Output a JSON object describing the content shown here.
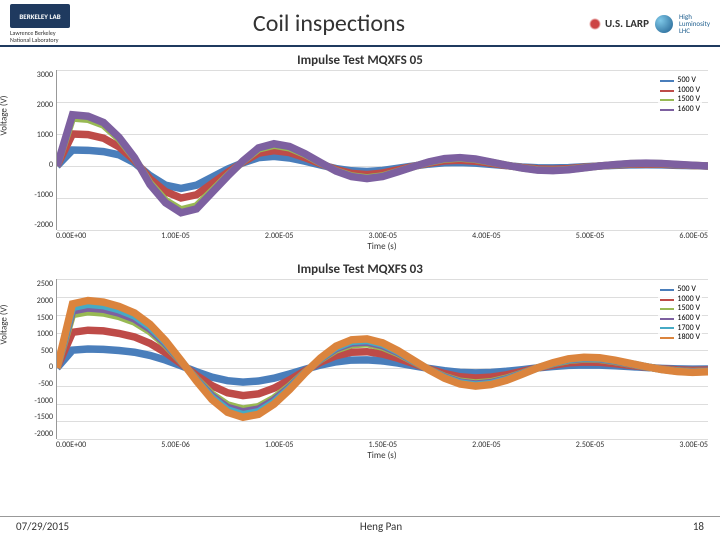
{
  "header": {
    "logo_badge": "BERKELEY LAB",
    "logo_sub1": "Lawrence Berkeley",
    "logo_sub2": "National Laboratory",
    "title": "Coil inspections",
    "larp_label": "U.S. LARP",
    "hilumi1": "High",
    "hilumi2": "Luminosity",
    "hilumi3": "LHC"
  },
  "chart1": {
    "title": "Impulse Test MQXFS 05",
    "type": "line",
    "ylabel": "Voltage (V)",
    "xlabel": "Time (s)",
    "ylim": [
      -2000,
      3000
    ],
    "yticks": [
      "3000",
      "2000",
      "1000",
      "0",
      "-1000",
      "-2000"
    ],
    "xticks": [
      "0.00E+00",
      "1.00E-05",
      "2.00E-05",
      "3.00E-05",
      "4.00E-05",
      "5.00E-05",
      "6.00E-05"
    ],
    "grid_color": "#dddddd",
    "background_color": "#ffffff",
    "line_width": 1.2,
    "tick_fontsize": 8,
    "label_fontsize": 9,
    "title_fontsize": 13,
    "series": [
      {
        "label": "500 V",
        "color": "#4a7ebb",
        "values": [
          0,
          500,
          490,
          450,
          350,
          100,
          -300,
          -600,
          -700,
          -600,
          -350,
          -100,
          100,
          260,
          300,
          250,
          150,
          30,
          -80,
          -150,
          -170,
          -140,
          -70,
          0,
          60,
          100,
          110,
          90,
          50,
          10,
          -30,
          -55,
          -60,
          -50,
          -25,
          0,
          20,
          35,
          40,
          35,
          20,
          10,
          0
        ]
      },
      {
        "label": "1000 V",
        "color": "#be4b48",
        "values": [
          0,
          1000,
          980,
          870,
          600,
          180,
          -400,
          -800,
          -1000,
          -900,
          -550,
          -200,
          120,
          400,
          480,
          420,
          260,
          70,
          -110,
          -230,
          -270,
          -220,
          -120,
          -10,
          90,
          160,
          180,
          150,
          85,
          15,
          -45,
          -90,
          -100,
          -80,
          -40,
          0,
          30,
          55,
          60,
          55,
          35,
          15,
          0
        ]
      },
      {
        "label": "1500 V",
        "color": "#98b954",
        "values": [
          0,
          1500,
          1460,
          1280,
          850,
          250,
          -540,
          -1080,
          -1370,
          -1250,
          -780,
          -300,
          150,
          530,
          650,
          570,
          360,
          100,
          -150,
          -310,
          -370,
          -310,
          -170,
          -20,
          120,
          215,
          245,
          205,
          120,
          25,
          -60,
          -120,
          -135,
          -110,
          -55,
          0,
          40,
          75,
          85,
          75,
          45,
          20,
          0
        ]
      },
      {
        "label": "1600 V",
        "color": "#7d60a0",
        "values": [
          0,
          1600,
          1555,
          1360,
          900,
          265,
          -580,
          -1150,
          -1460,
          -1340,
          -830,
          -320,
          160,
          565,
          695,
          610,
          385,
          110,
          -160,
          -330,
          -395,
          -330,
          -180,
          -20,
          130,
          230,
          260,
          220,
          125,
          25,
          -65,
          -130,
          -145,
          -118,
          -60,
          0,
          45,
          80,
          90,
          80,
          50,
          22,
          0
        ]
      }
    ]
  },
  "chart2": {
    "title": "Impulse Test MQXFS 03",
    "type": "line",
    "ylabel": "Voltage (V)",
    "xlabel": "Time (s)",
    "ylim": [
      -2000,
      2500
    ],
    "yticks": [
      "2500",
      "2000",
      "1500",
      "1000",
      "500",
      "0",
      "-500",
      "-1000",
      "-1500",
      "-2000"
    ],
    "xticks": [
      "0.00E+00",
      "5.00E-06",
      "1.00E-05",
      "1.50E-05",
      "2.00E-05",
      "2.50E-05",
      "3.00E-05"
    ],
    "grid_color": "#dddddd",
    "background_color": "#ffffff",
    "line_width": 1.2,
    "tick_fontsize": 8,
    "label_fontsize": 9,
    "title_fontsize": 13,
    "series": [
      {
        "label": "500 V",
        "color": "#4a7ebb",
        "values": [
          0,
          500,
          530,
          520,
          490,
          440,
          350,
          220,
          60,
          -110,
          -260,
          -360,
          -400,
          -370,
          -290,
          -170,
          -40,
          80,
          170,
          220,
          225,
          195,
          135,
          60,
          -15,
          -80,
          -125,
          -140,
          -128,
          -95,
          -50,
          0,
          40,
          70,
          82,
          78,
          60,
          35,
          10,
          -12,
          -28,
          -35,
          -30
        ]
      },
      {
        "label": "1000 V",
        "color": "#be4b48",
        "values": [
          0,
          1000,
          1060,
          1040,
          970,
          870,
          690,
          430,
          120,
          -210,
          -500,
          -700,
          -780,
          -730,
          -570,
          -340,
          -80,
          160,
          340,
          440,
          455,
          390,
          270,
          120,
          -30,
          -160,
          -250,
          -285,
          -260,
          -195,
          -100,
          0,
          80,
          140,
          165,
          158,
          120,
          70,
          20,
          -25,
          -56,
          -70,
          -60
        ]
      },
      {
        "label": "1500 V",
        "color": "#98b954",
        "values": [
          0,
          1500,
          1580,
          1545,
          1445,
          1290,
          1020,
          640,
          180,
          -310,
          -740,
          -1040,
          -1160,
          -1090,
          -850,
          -510,
          -120,
          235,
          505,
          655,
          680,
          585,
          405,
          180,
          -45,
          -240,
          -375,
          -425,
          -390,
          -290,
          -150,
          0,
          120,
          210,
          250,
          238,
          180,
          105,
          30,
          -38,
          -85,
          -105,
          -90
        ]
      },
      {
        "label": "1600 V",
        "color": "#7d60a0",
        "values": [
          0,
          1600,
          1685,
          1650,
          1540,
          1375,
          1090,
          680,
          190,
          -330,
          -790,
          -1110,
          -1235,
          -1160,
          -905,
          -545,
          -130,
          250,
          540,
          700,
          725,
          625,
          430,
          190,
          -48,
          -255,
          -400,
          -455,
          -415,
          -310,
          -160,
          0,
          128,
          225,
          265,
          253,
          192,
          112,
          32,
          -40,
          -90,
          -112,
          -96
        ]
      },
      {
        "label": "1700 V",
        "color": "#46aac5",
        "values": [
          0,
          1700,
          1790,
          1750,
          1635,
          1460,
          1155,
          725,
          200,
          -350,
          -840,
          -1180,
          -1315,
          -1235,
          -965,
          -580,
          -138,
          265,
          575,
          745,
          770,
          665,
          460,
          205,
          -50,
          -272,
          -425,
          -483,
          -443,
          -330,
          -170,
          0,
          135,
          238,
          282,
          270,
          205,
          120,
          34,
          -43,
          -96,
          -120,
          -102
        ]
      },
      {
        "label": "1800 V",
        "color": "#db843d",
        "values": [
          0,
          1800,
          1895,
          1850,
          1730,
          1545,
          1225,
          765,
          210,
          -370,
          -890,
          -1250,
          -1390,
          -1305,
          -1020,
          -615,
          -145,
          280,
          610,
          790,
          815,
          705,
          485,
          215,
          -55,
          -290,
          -452,
          -513,
          -470,
          -350,
          -180,
          0,
          145,
          255,
          300,
          286,
          217,
          126,
          36,
          -46,
          -102,
          -126,
          -108
        ]
      }
    ]
  },
  "footer": {
    "date": "07/29/2015",
    "author": "Heng Pan",
    "page": "18"
  }
}
